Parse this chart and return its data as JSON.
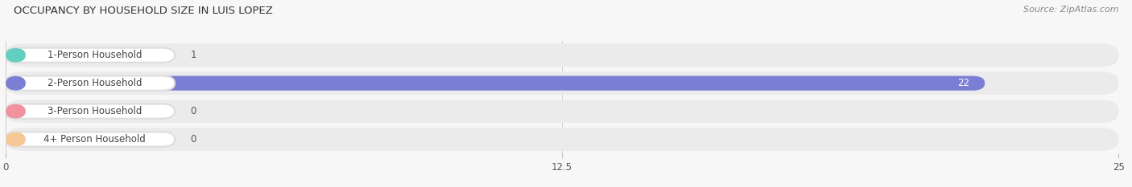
{
  "title": "OCCUPANCY BY HOUSEHOLD SIZE IN LUIS LOPEZ",
  "source": "Source: ZipAtlas.com",
  "categories": [
    "1-Person Household",
    "2-Person Household",
    "3-Person Household",
    "4+ Person Household"
  ],
  "values": [
    1,
    22,
    0,
    0
  ],
  "bar_colors": [
    "#62cfc0",
    "#7b7fd4",
    "#f092a0",
    "#f5c896"
  ],
  "xlim": [
    0,
    25
  ],
  "xticks": [
    0,
    12.5,
    25
  ],
  "row_colors": [
    "#f0f0f0",
    "#e8e8f0",
    "#f0f0f0",
    "#f0f0f0"
  ],
  "background_color": "#f7f7f7"
}
